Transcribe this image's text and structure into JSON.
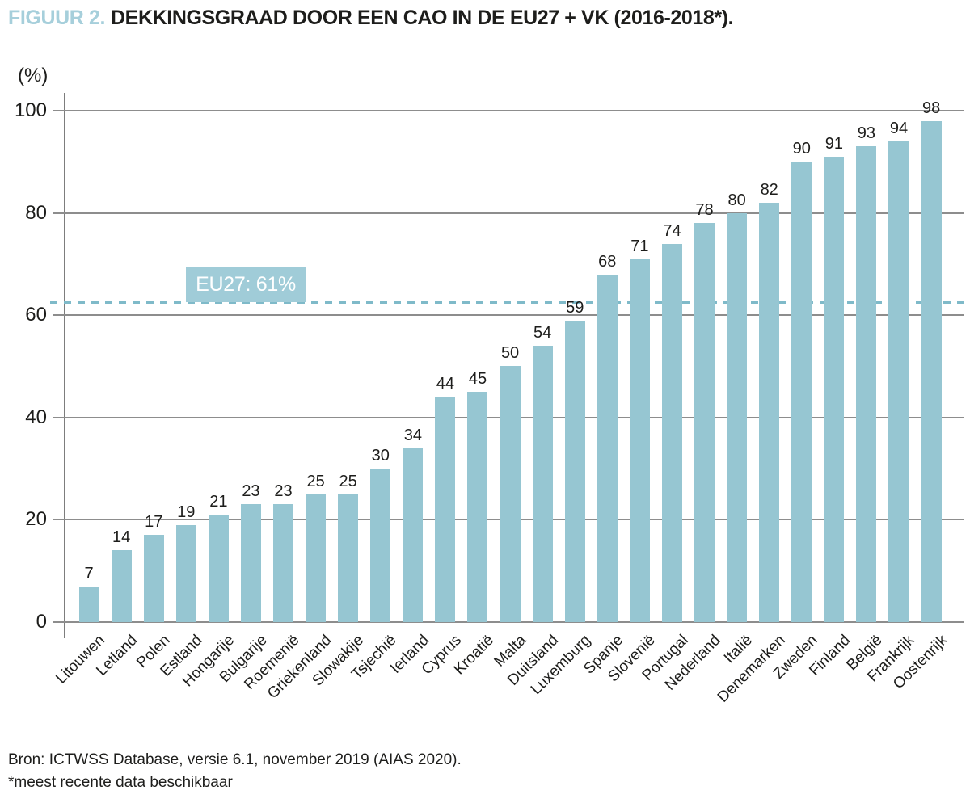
{
  "title": {
    "prefix": "FIGUUR 2.",
    "text": "DEKKINGSGRAAD DOOR EEN CAO IN DE EU27 + VK (2016-2018*)."
  },
  "source": "Bron: ICTWSS Database, versie 6.1, november 2019 (AIAS 2020).",
  "note": "*meest recente data beschikbaar",
  "colors": {
    "bar": "#96c6d2",
    "title_accent": "#a6cfdb",
    "annotation_box": "#a0ccd8",
    "reference_line": "#7fbac9",
    "gridline": "#8d8d8d",
    "axis": "#7d7d7d",
    "text": "#1d1d1b"
  },
  "chart_data": {
    "type": "bar",
    "title": "DEKKINGSGRAAD DOOR EEN CAO IN DE EU27 + VK (2016-2018*)",
    "xlabel": "",
    "ylabel": "(%)",
    "ylim": [
      0,
      100
    ],
    "yticks": [
      0,
      20,
      40,
      60,
      80,
      100
    ],
    "grid": "horizontal",
    "legend": "none",
    "value_labels": true,
    "bar_color": "#96c6d2",
    "categories": [
      "Litouwen",
      "Letland",
      "Polen",
      "Estland",
      "Hongarije",
      "Bulgarije",
      "Roemenië",
      "Griekenland",
      "Slowakije",
      "Tsjechië",
      "Ierland",
      "Cyprus",
      "Kroatië",
      "Malta",
      "Duitsland",
      "Luxemburg",
      "Spanje",
      "Slovenië",
      "Portugal",
      "Nederland",
      "Italië",
      "Denemarken",
      "Zweden",
      "Finland",
      "België",
      "Frankrijk",
      "Oostenrijk"
    ],
    "values": [
      7,
      14,
      17,
      19,
      21,
      23,
      23,
      25,
      25,
      30,
      34,
      44,
      45,
      50,
      54,
      59,
      68,
      71,
      74,
      78,
      80,
      82,
      90,
      91,
      93,
      94,
      98
    ],
    "reference_line": {
      "label": "EU27: 61%",
      "value": 61,
      "render_value": 62.5,
      "style": "dashed",
      "color": "#7fbac9"
    }
  }
}
